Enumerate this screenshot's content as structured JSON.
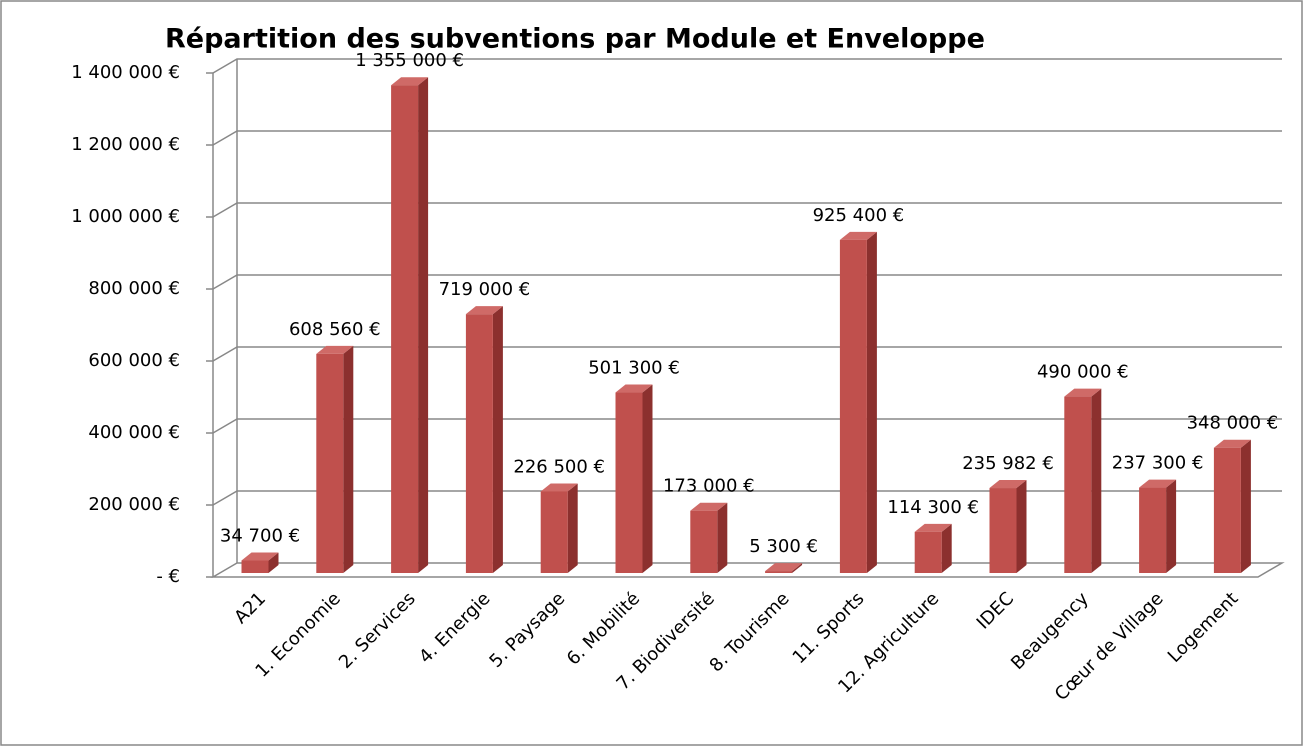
{
  "chart_data": {
    "type": "bar3d",
    "title": "Répartition des subventions par Module et Enveloppe",
    "categories": [
      "A21",
      "1. Economie",
      "2. Services",
      "4. Energie",
      "5. Paysage",
      "6. Mobilité",
      "7. Biodiversité",
      "8. Tourisme",
      "11. Sports",
      "12. Agriculture",
      "IDEC",
      "Beaugency",
      "Cœur de Village",
      "Logement"
    ],
    "values": [
      34700,
      608560,
      1355000,
      719000,
      226500,
      501300,
      173000,
      5300,
      925400,
      114300,
      235982,
      490000,
      237300,
      348000
    ],
    "value_labels": [
      "34 700 €",
      "608 560 €",
      "1 355 000 €",
      "719 000 €",
      "226 500 €",
      "501 300 €",
      "173 000 €",
      "5 300 €",
      "925 400 €",
      "114 300 €",
      "235 982 €",
      "490 000 €",
      "237 300 €",
      "348 000 €"
    ],
    "color": "#c0504d",
    "ylim": [
      0,
      1400000
    ],
    "yticks": [
      {
        "value": 0,
        "label": "-   €"
      },
      {
        "value": 200000,
        "label": "200 000 €"
      },
      {
        "value": 400000,
        "label": "400 000 €"
      },
      {
        "value": 600000,
        "label": "600 000 €"
      },
      {
        "value": 800000,
        "label": "800 000 €"
      },
      {
        "value": 1000000,
        "label": "1 000 000 €"
      },
      {
        "value": 1200000,
        "label": "1 200 000 €"
      },
      {
        "value": 1400000,
        "label": "1 400 000 €"
      }
    ],
    "grid": true
  }
}
